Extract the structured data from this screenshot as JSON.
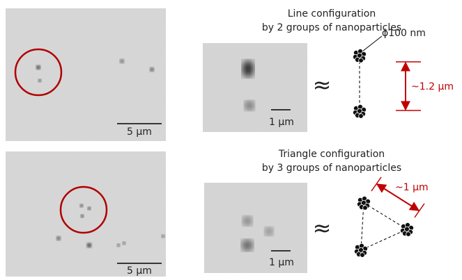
{
  "panels": [
    {
      "title": [
        "Line configuration",
        "by 2 groups of nanoparticles"
      ],
      "overview_scale": "5 μm",
      "zoom_scale": "1 μm",
      "approx": "≈",
      "size_label": "ϕ100 nm",
      "distance": "~1.2 μm"
    },
    {
      "title": [
        "Triangle configuration",
        "by 3 groups of nanoparticles"
      ],
      "overview_scale": "5 μm",
      "zoom_scale": "1 μm",
      "approx": "≈",
      "distance": "~1 μm"
    }
  ]
}
